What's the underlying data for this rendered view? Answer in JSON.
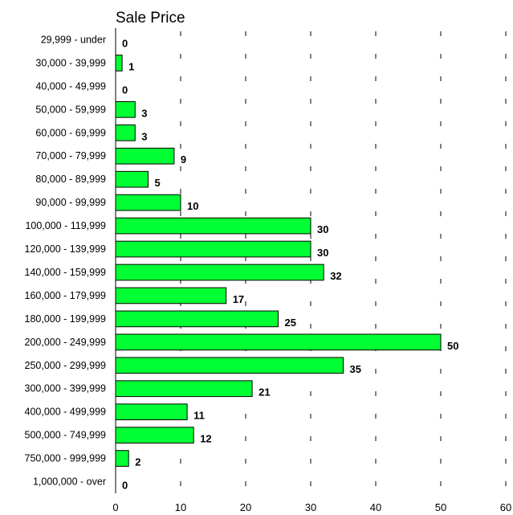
{
  "chart_data": {
    "type": "bar",
    "orientation": "horizontal",
    "title": "Sale Price",
    "xlabel": "",
    "ylabel": "",
    "categories": [
      "29,999 - under",
      "30,000 - 39,999",
      "40,000 - 49,999",
      "50,000 - 59,999",
      "60,000 - 69,999",
      "70,000 - 79,999",
      "80,000 - 89,999",
      "90,000 - 99,999",
      "100,000 - 119,999",
      "120,000 - 139,999",
      "140,000 - 159,999",
      "160,000 - 179,999",
      "180,000 - 199,999",
      "200,000 - 249,999",
      "250,000 - 299,999",
      "300,000 - 399,999",
      "400,000 - 499,999",
      "500,000 - 749,999",
      "750,000 - 999,999",
      "1,000,000 - over"
    ],
    "values": [
      0,
      1,
      0,
      3,
      3,
      9,
      5,
      10,
      30,
      30,
      32,
      17,
      25,
      50,
      35,
      21,
      11,
      12,
      2,
      0
    ],
    "xlim": [
      0,
      60
    ],
    "xticks": [
      0,
      10,
      20,
      30,
      40,
      50,
      60
    ],
    "grid": "dashed vertical",
    "legend": "none",
    "bar_color": "#00ff33"
  }
}
